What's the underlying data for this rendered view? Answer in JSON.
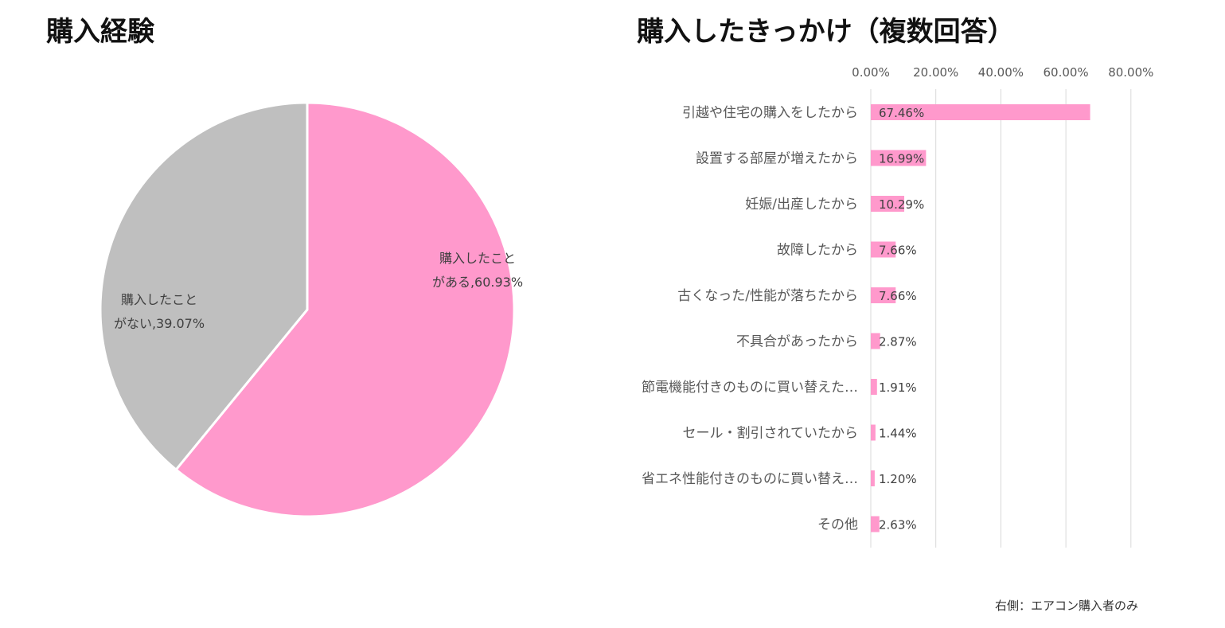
{
  "chart_data": [
    {
      "type": "pie",
      "title": "購入経験",
      "slices": [
        {
          "label_line1": "購入したこと",
          "label_line2": "がある",
          "value": 60.93,
          "value_text": "60.93%",
          "color": "#FF99CC"
        },
        {
          "label_line1": "購入したこと",
          "label_line2": "がない",
          "value": 39.07,
          "value_text": "39.07%",
          "color": "#BFBFBF"
        }
      ]
    },
    {
      "type": "bar",
      "orientation": "horizontal",
      "title": "購入したきっかけ（複数回答）",
      "color": "#FF99CC",
      "xlim": [
        0,
        80
      ],
      "xticks": [
        0,
        20,
        40,
        60,
        80
      ],
      "xtick_labels": [
        "0.00%",
        "20.00%",
        "40.00%",
        "60.00%",
        "80.00%"
      ],
      "categories": [
        "引越や住宅の購入をしたから",
        "設置する部屋が増えたから",
        "妊娠/出産したから",
        "故障したから",
        "古くなった/性能が落ちたから",
        "不具合があったから",
        "節電機能付きのものに買い替えた…",
        "セール・割引されていたから",
        "省エネ性能付きのものに買い替え…",
        "その他"
      ],
      "values": [
        67.46,
        16.99,
        10.29,
        7.66,
        7.66,
        2.87,
        1.91,
        1.44,
        1.2,
        2.63
      ],
      "value_labels": [
        "67.46%",
        "16.99%",
        "10.29%",
        "7.66%",
        "7.66%",
        "2.87%",
        "1.91%",
        "1.44%",
        "1.20%",
        "2.63%"
      ],
      "grid": true
    }
  ],
  "footnote": "右側：エアコン購入者のみ"
}
